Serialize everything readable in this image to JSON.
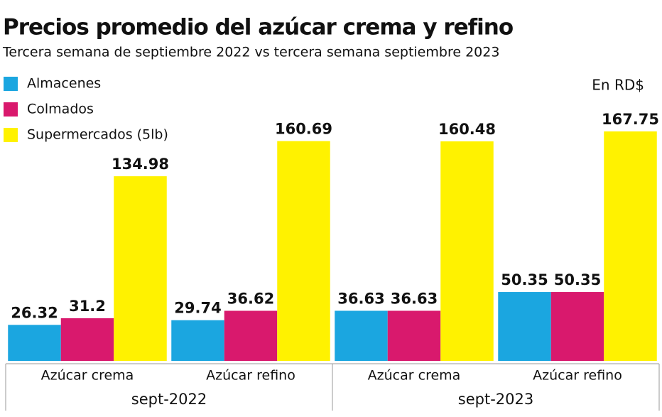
{
  "chart_data": {
    "type": "bar",
    "title": "Precios promedio del azúcar crema y refino",
    "subtitle": "Tercera semana de septiembre 2022 vs tercera semana septiembre 2023",
    "unit_note": "En RD$",
    "categories": [
      "Azúcar crema",
      "Azúcar refino",
      "Azúcar crema",
      "Azúcar refino"
    ],
    "category_groups": [
      "sept-2022",
      "sept-2023"
    ],
    "series": [
      {
        "name": "Almacenes",
        "color": "#1ba6e0",
        "values": [
          26.32,
          29.74,
          36.63,
          50.35
        ]
      },
      {
        "name": "Colmados",
        "color": "#d9196d",
        "values": [
          31.2,
          36.62,
          36.63,
          50.35
        ]
      },
      {
        "name": "Supermercados (5lb)",
        "color": "#fff200",
        "values": [
          134.98,
          160.69,
          160.48,
          167.75
        ]
      }
    ]
  }
}
